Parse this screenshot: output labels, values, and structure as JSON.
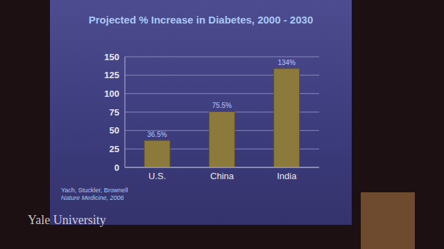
{
  "chart_data": {
    "type": "bar",
    "title": "Projected % Increase in Diabetes, 2000 - 2030",
    "categories": [
      "U.S.",
      "China",
      "India"
    ],
    "values": [
      36.5,
      75.5,
      134
    ],
    "value_labels": [
      "36.5%",
      "75.5%",
      "134%"
    ],
    "data_labels": true,
    "color": "#8c7a3c",
    "ylim": [
      0,
      150
    ],
    "yticks": [
      0,
      25,
      50,
      75,
      100,
      125,
      150
    ],
    "grid": true,
    "annotations": [
      "Yach, Stuckler, Brownell",
      "Nature Medicine, 2006",
      "Yale University"
    ]
  }
}
